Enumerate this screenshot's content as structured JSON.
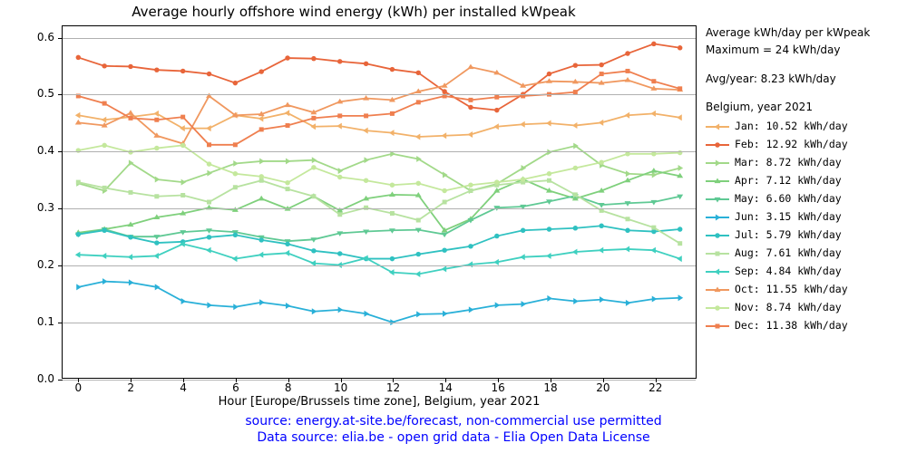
{
  "chart": {
    "title": "Average hourly offshore wind energy (kWh) per installed kWpeak",
    "xlabel": "Hour [Europe/Brussels time zone], Belgium, year 2021",
    "footer_line1": "source: energy.at-site.be/forecast, non-commercial use permitted",
    "footer_line2": "Data source: elia.be - open grid data - Elia Open Data License",
    "title_fontsize": 15,
    "xlabel_fontsize": 13,
    "footer_fontsize": 14,
    "footer_color": "#0000ff",
    "background_color": "#ffffff",
    "grid_color": "#b0b0b0",
    "axis_color": "#000000",
    "xlim": [
      -0.6,
      23.6
    ],
    "ylim": [
      0.0,
      0.62
    ],
    "xticks": [
      0,
      2,
      4,
      6,
      8,
      10,
      12,
      14,
      16,
      18,
      20,
      22
    ],
    "yticks": [
      0.0,
      0.1,
      0.2,
      0.3,
      0.4,
      0.5,
      0.6
    ],
    "line_width": 1.8,
    "marker_size": 5,
    "legend": {
      "header1": "Average kWh/day per kWpeak",
      "header2": "Maximum = 24 kWh/day",
      "header3": "Avg/year: 8.23 kWh/day",
      "header4": "Belgium, year 2021"
    },
    "series": [
      {
        "name": "Jan",
        "label": "Jan: 10.52 kWh/day",
        "color": "#f2b169",
        "marker": "tri_left",
        "data": [
          0.463,
          0.455,
          0.46,
          0.466,
          0.44,
          0.44,
          0.463,
          0.457,
          0.467,
          0.443,
          0.444,
          0.436,
          0.432,
          0.425,
          0.427,
          0.429,
          0.443,
          0.447,
          0.449,
          0.445,
          0.45,
          0.463,
          0.466,
          0.459
        ]
      },
      {
        "name": "Feb",
        "label": "Feb: 12.92 kWh/day",
        "color": "#e8653a",
        "marker": "circle",
        "data": [
          0.565,
          0.55,
          0.549,
          0.543,
          0.541,
          0.536,
          0.52,
          0.54,
          0.564,
          0.563,
          0.558,
          0.554,
          0.544,
          0.538,
          0.505,
          0.477,
          0.472,
          0.5,
          0.536,
          0.551,
          0.552,
          0.572,
          0.589,
          0.582
        ]
      },
      {
        "name": "Mar",
        "label": "Mar: 8.72 kWh/day",
        "color": "#a2d989",
        "marker": "tri_right",
        "data": [
          0.343,
          0.33,
          0.379,
          0.35,
          0.345,
          0.361,
          0.378,
          0.382,
          0.382,
          0.384,
          0.365,
          0.384,
          0.395,
          0.386,
          0.358,
          0.33,
          0.342,
          0.37,
          0.398,
          0.409,
          0.375,
          0.36,
          0.358,
          0.37
        ]
      },
      {
        "name": "Apr",
        "label": "Apr: 7.12 kWh/day",
        "color": "#7fd07c",
        "marker": "tri_up",
        "data": [
          0.256,
          0.262,
          0.27,
          0.283,
          0.29,
          0.3,
          0.296,
          0.316,
          0.298,
          0.32,
          0.295,
          0.316,
          0.323,
          0.322,
          0.26,
          0.28,
          0.33,
          0.35,
          0.33,
          0.316,
          0.33,
          0.348,
          0.365,
          0.356
        ]
      },
      {
        "name": "May",
        "label": "May: 6.60 kWh/day",
        "color": "#5fc994",
        "marker": "tri_down",
        "data": [
          0.253,
          0.262,
          0.249,
          0.249,
          0.257,
          0.26,
          0.257,
          0.248,
          0.241,
          0.244,
          0.255,
          0.258,
          0.26,
          0.261,
          0.253,
          0.278,
          0.3,
          0.302,
          0.311,
          0.321,
          0.305,
          0.308,
          0.31,
          0.32
        ]
      },
      {
        "name": "Jun",
        "label": "Jun: 3.15 kWh/day",
        "color": "#29b0d8",
        "marker": "tri_right",
        "data": [
          0.16,
          0.17,
          0.168,
          0.16,
          0.135,
          0.128,
          0.125,
          0.133,
          0.127,
          0.117,
          0.12,
          0.113,
          0.098,
          0.112,
          0.113,
          0.12,
          0.128,
          0.13,
          0.14,
          0.135,
          0.138,
          0.132,
          0.139,
          0.141
        ]
      },
      {
        "name": "Jul",
        "label": "Jul: 5.79 kWh/day",
        "color": "#2fc1c1",
        "marker": "circle",
        "data": [
          0.253,
          0.26,
          0.248,
          0.238,
          0.24,
          0.248,
          0.252,
          0.243,
          0.236,
          0.224,
          0.219,
          0.21,
          0.21,
          0.218,
          0.225,
          0.232,
          0.25,
          0.26,
          0.262,
          0.264,
          0.268,
          0.26,
          0.258,
          0.262
        ]
      },
      {
        "name": "Aug",
        "label": "Aug: 7.61 kWh/day",
        "color": "#b7e2a0",
        "marker": "square",
        "data": [
          0.345,
          0.335,
          0.327,
          0.32,
          0.322,
          0.31,
          0.336,
          0.348,
          0.333,
          0.32,
          0.288,
          0.3,
          0.29,
          0.278,
          0.31,
          0.33,
          0.34,
          0.345,
          0.348,
          0.323,
          0.295,
          0.28,
          0.265,
          0.237
        ]
      },
      {
        "name": "Sep",
        "label": "Sep: 4.84 kWh/day",
        "color": "#3fd0c0",
        "marker": "tri_left",
        "data": [
          0.217,
          0.215,
          0.213,
          0.215,
          0.236,
          0.225,
          0.21,
          0.217,
          0.22,
          0.202,
          0.199,
          0.211,
          0.186,
          0.183,
          0.192,
          0.2,
          0.204,
          0.213,
          0.215,
          0.222,
          0.225,
          0.227,
          0.225,
          0.21
        ]
      },
      {
        "name": "Oct",
        "label": "Oct: 11.55 kWh/day",
        "color": "#f0985f",
        "marker": "tri_up",
        "data": [
          0.45,
          0.445,
          0.467,
          0.427,
          0.413,
          0.497,
          0.463,
          0.465,
          0.481,
          0.468,
          0.487,
          0.493,
          0.49,
          0.505,
          0.515,
          0.548,
          0.538,
          0.515,
          0.523,
          0.522,
          0.52,
          0.525,
          0.51,
          0.508
        ]
      },
      {
        "name": "Nov",
        "label": "Nov: 8.74 kWh/day",
        "color": "#c4e89c",
        "marker": "circle",
        "data": [
          0.401,
          0.41,
          0.398,
          0.405,
          0.41,
          0.377,
          0.36,
          0.355,
          0.344,
          0.371,
          0.354,
          0.348,
          0.34,
          0.343,
          0.33,
          0.34,
          0.345,
          0.35,
          0.36,
          0.37,
          0.38,
          0.395,
          0.395,
          0.397
        ]
      },
      {
        "name": "Dec",
        "label": "Dec: 11.38 kWh/day",
        "color": "#ef7f4f",
        "marker": "square",
        "data": [
          0.497,
          0.484,
          0.458,
          0.455,
          0.46,
          0.411,
          0.411,
          0.438,
          0.445,
          0.458,
          0.462,
          0.462,
          0.466,
          0.486,
          0.497,
          0.49,
          0.495,
          0.497,
          0.5,
          0.504,
          0.536,
          0.541,
          0.523,
          0.51
        ]
      }
    ]
  }
}
